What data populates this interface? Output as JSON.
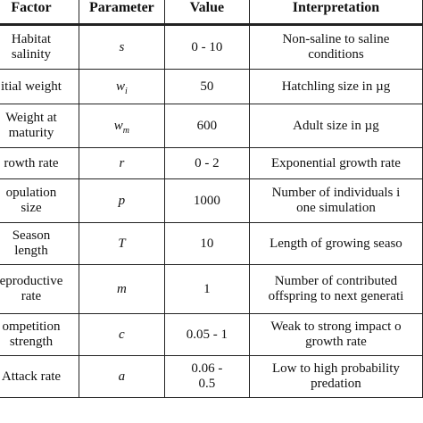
{
  "headers": {
    "factor": "Factor",
    "parameter": "Parameter",
    "value": "Value",
    "interpretation": "Interpretation"
  },
  "rows": [
    {
      "factor": [
        "Habitat",
        "salinity"
      ],
      "param": "s",
      "param_sub": "",
      "value": [
        "0 - 10"
      ],
      "interp": [
        "Non-saline to saline",
        "conditions"
      ]
    },
    {
      "factor": [
        "itial weight"
      ],
      "param": "w",
      "param_sub": "i",
      "value": [
        "50"
      ],
      "interp": [
        "Hatchling size in µg"
      ]
    },
    {
      "factor": [
        "Weight at",
        "maturity"
      ],
      "param": "w",
      "param_sub": "m",
      "value": [
        "600"
      ],
      "interp": [
        "Adult size in µg"
      ]
    },
    {
      "factor": [
        "rowth rate"
      ],
      "param": "r",
      "param_sub": "",
      "value": [
        "0 - 2"
      ],
      "interp": [
        "Exponential growth rate"
      ]
    },
    {
      "factor": [
        "opulation",
        "size"
      ],
      "param": "p",
      "param_sub": "",
      "value": [
        "1000"
      ],
      "interp": [
        "Number of individuals i",
        "one simulation"
      ]
    },
    {
      "factor": [
        "Season",
        "length"
      ],
      "param": "T",
      "param_sub": "",
      "value": [
        "10"
      ],
      "interp": [
        "Length of growing seaso"
      ]
    },
    {
      "factor": [
        "eproductive",
        "rate"
      ],
      "param": "m",
      "param_sub": "",
      "value": [
        "1"
      ],
      "interp": [
        "Number of contributed",
        "offspring to next generati"
      ]
    },
    {
      "factor": [
        "ompetition",
        "strength"
      ],
      "param": "c",
      "param_sub": "",
      "value": [
        "0.05 - 1"
      ],
      "interp": [
        "Weak to strong impact o",
        "growth rate"
      ]
    },
    {
      "factor": [
        "Attack rate"
      ],
      "param": "a",
      "param_sub": "",
      "value": [
        "0.06 -",
        "0.5"
      ],
      "interp": [
        "Low to high probability",
        "predation"
      ]
    }
  ]
}
